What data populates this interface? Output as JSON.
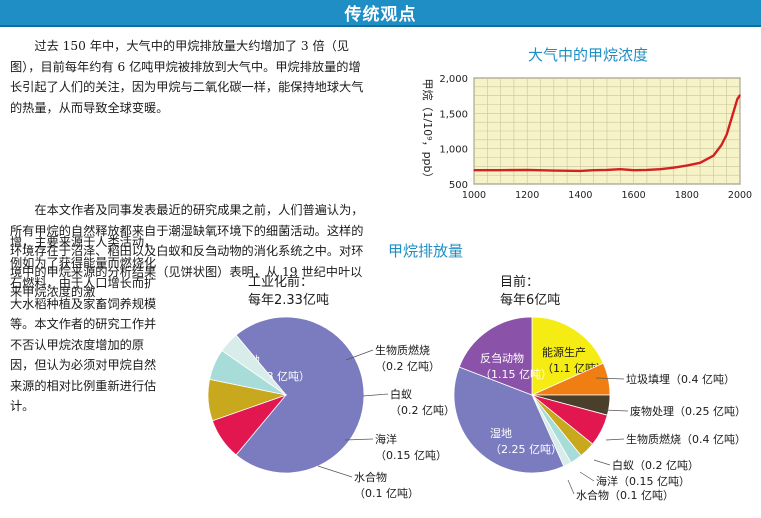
{
  "header": {
    "title": "传统观点"
  },
  "text": {
    "p1": "过去 150 年中，大气中的甲烷排放量大约增加了 3 倍（见图），目前每年约有 6 亿吨甲烷被排放到大气中。甲烷排放量的增长引起了人们的关注，因为甲烷与二氧化碳一样，能保持地球大气的热量，从而导致全球变暖。",
    "p2_wide": "在本文作者及同事发表最近的研究成果之前，人们普遍认为，所有甲烷的自然释放都来自于潮湿缺氧环境下的细菌活动。这样的环境存在于沼泽、稻田以及白蚁和反刍动物的消化系统之中。对环境中的甲烷来源的分析结果（见饼状图）表明，从 19 世纪中叶以来甲烷浓度的激",
    "p2_narrow": "增，主要来源于人类活动，例如为了获得能量而燃烧化石燃料，由于人口增长而扩大水稻种植及家畜饲养规模等。本文作者的研究工作并不否认甲烷浓度增加的原因，但认为必须对甲烷自然来源的相对比例重新进行估计。"
  },
  "line_chart": {
    "title": "大气中的甲烷浓度",
    "ylabel": "甲烷（1/10⁹，ppb）",
    "chart_data": {
      "type": "line",
      "x": [
        1000,
        1100,
        1200,
        1300,
        1400,
        1450,
        1500,
        1550,
        1600,
        1650,
        1700,
        1750,
        1800,
        1850,
        1900,
        1930,
        1950,
        1970,
        1990,
        2000
      ],
      "series": [
        {
          "values": [
            695,
            695,
            700,
            690,
            685,
            695,
            700,
            710,
            695,
            700,
            710,
            730,
            760,
            800,
            900,
            1050,
            1200,
            1450,
            1700,
            1760
          ]
        }
      ],
      "xticks": [
        "1000",
        "1200",
        "1400",
        "1600",
        "1800",
        "2000"
      ],
      "yticks": [
        "500",
        "1,000",
        "1,500",
        "2,000"
      ],
      "xlim": [
        1000,
        2000
      ],
      "ylim": [
        500,
        2000
      ],
      "grid": true,
      "line_color": "#d42020",
      "plot_bg": "#f7f3c8",
      "grid_color": "#c9c49a"
    }
  },
  "pie_section": {
    "title": "甲烷排放量",
    "pie1": {
      "heading_line1": "工业化前：",
      "heading_line2": "每年2.33亿吨",
      "chart_data": {
        "type": "pie",
        "slices": [
          {
            "name": "湿地",
            "value_label": "（1.68 亿吨）",
            "value": 1.68,
            "color": "#7b7bbf"
          },
          {
            "name": "生物质燃烧",
            "value_label": "（0.2 亿吨）",
            "value": 0.2,
            "color": "#e2174f"
          },
          {
            "name": "白蚁",
            "value_label": "（0.2 亿吨）",
            "value": 0.2,
            "color": "#c8a81c"
          },
          {
            "name": "海洋",
            "value_label": "（0.15 亿吨）",
            "value": 0.15,
            "color": "#a8dcd8"
          },
          {
            "name": "水合物",
            "value_label": "（0.1 亿吨）",
            "value": 0.1,
            "color": "#d8ecea"
          }
        ]
      }
    },
    "pie2": {
      "heading_line1": "目前：",
      "heading_line2": "每年6亿吨",
      "chart_data": {
        "type": "pie",
        "slices": [
          {
            "name": "能源生产",
            "value_label": "（1.1 亿吨）",
            "value": 1.1,
            "color": "#f5ec14"
          },
          {
            "name": "垃圾填埋",
            "value_label": "（0.4 亿吨）",
            "value": 0.4,
            "color": "#f07e12"
          },
          {
            "name": "废物处理",
            "value_label": "（0.25 亿吨）",
            "value": 0.25,
            "color": "#4a3f2a"
          },
          {
            "name": "生物质燃烧",
            "value_label": "（0.4 亿吨）",
            "value": 0.4,
            "color": "#e2174f"
          },
          {
            "name": "白蚁",
            "value_label": "（0.2 亿吨）",
            "value": 0.2,
            "color": "#c8a81c"
          },
          {
            "name": "海洋",
            "value_label": "（0.15 亿吨）",
            "value": 0.15,
            "color": "#a8dcd8"
          },
          {
            "name": "水合物",
            "value_label": "（0.1 亿吨）",
            "value": 0.1,
            "color": "#d8ecea"
          },
          {
            "name": "湿地",
            "value_label": "（2.25 亿吨）",
            "value": 2.25,
            "color": "#7b7bbf"
          },
          {
            "name": "反刍动物",
            "value_label": "（1.15 亿吨）",
            "value": 1.15,
            "color": "#8a52a8"
          }
        ]
      }
    }
  }
}
